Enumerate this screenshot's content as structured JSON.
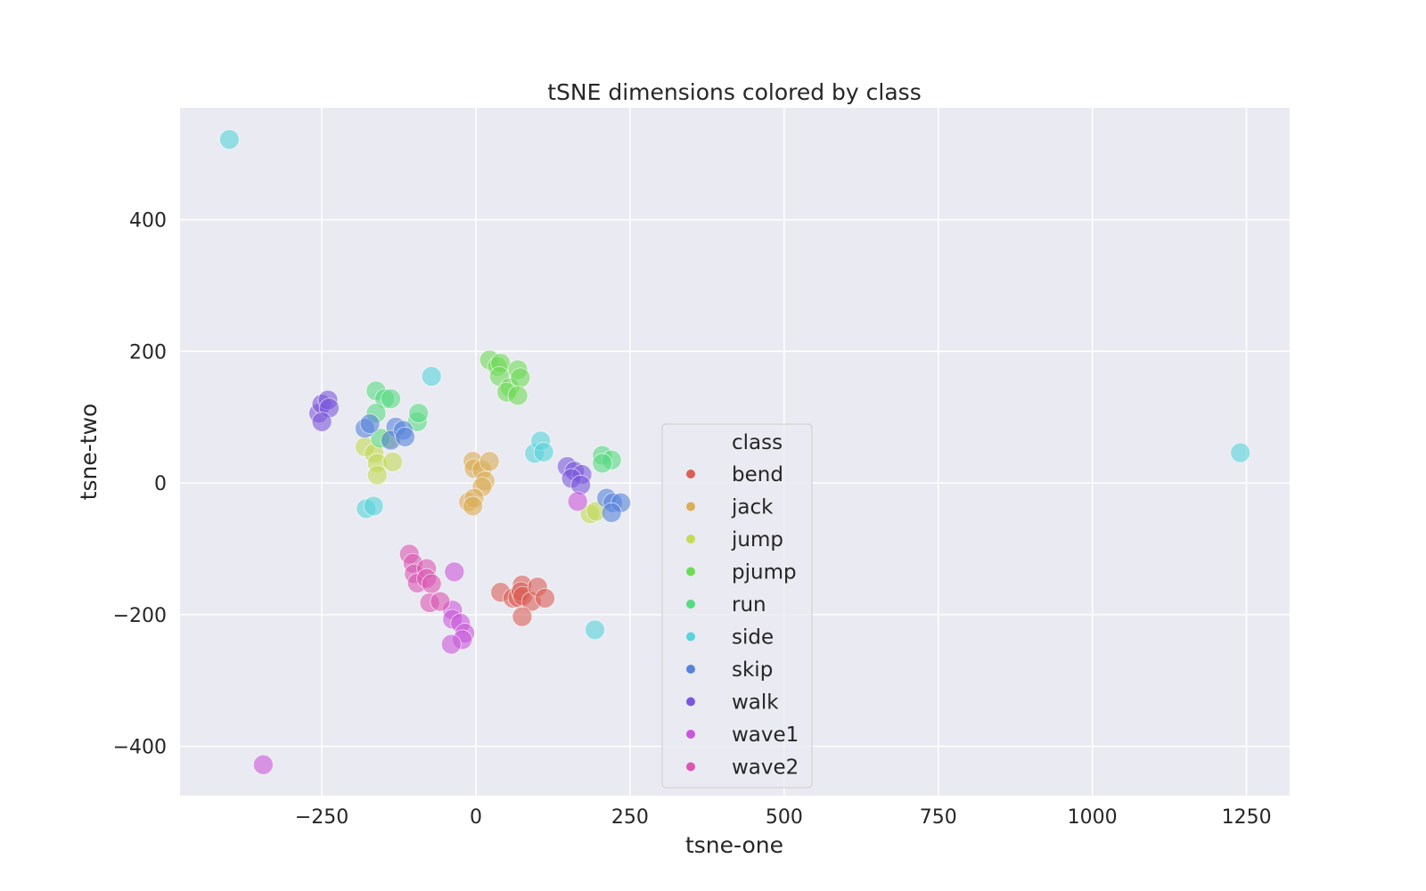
{
  "chart_data": {
    "type": "scatter",
    "title": "tSNE dimensions colored by class",
    "xlabel": "tsne-one",
    "ylabel": "tsne-two",
    "xlim": [
      -480,
      1320
    ],
    "ylim": [
      -475,
      570
    ],
    "xticks": [
      -250,
      0,
      250,
      500,
      750,
      1000,
      1250
    ],
    "xtick_labels": [
      "−250",
      "0",
      "250",
      "500",
      "750",
      "1000",
      "1250"
    ],
    "yticks": [
      -400,
      -200,
      0,
      200,
      400
    ],
    "ytick_labels": [
      "−400",
      "−200",
      "0",
      "200",
      "400"
    ],
    "grid": true,
    "legend": {
      "title": "class",
      "position": "lower-center"
    },
    "series": [
      {
        "name": "bend",
        "color": "#db5f57",
        "points": [
          [
            40,
            -166
          ],
          [
            60,
            -175
          ],
          [
            68,
            -174
          ],
          [
            75,
            -155
          ],
          [
            73,
            -165
          ],
          [
            76,
            -172
          ],
          [
            90,
            -180
          ],
          [
            100,
            -158
          ],
          [
            112,
            -175
          ],
          [
            75,
            -203
          ]
        ]
      },
      {
        "name": "jack",
        "color": "#dbad57",
        "points": [
          [
            -5,
            33
          ],
          [
            -3,
            22
          ],
          [
            10,
            20
          ],
          [
            22,
            33
          ],
          [
            15,
            3
          ],
          [
            10,
            -6
          ],
          [
            -12,
            -29
          ],
          [
            -3,
            -23
          ],
          [
            -5,
            -35
          ]
        ]
      },
      {
        "name": "jump",
        "color": "#c2db57",
        "points": [
          [
            -180,
            55
          ],
          [
            -165,
            45
          ],
          [
            -160,
            30
          ],
          [
            -160,
            12
          ],
          [
            -135,
            32
          ],
          [
            -140,
            67
          ],
          [
            185,
            -47
          ],
          [
            195,
            -43
          ]
        ]
      },
      {
        "name": "pjump",
        "color": "#6edb57",
        "points": [
          [
            22,
            187
          ],
          [
            35,
            177
          ],
          [
            40,
            182
          ],
          [
            38,
            162
          ],
          [
            55,
            145
          ],
          [
            50,
            138
          ],
          [
            68,
            172
          ],
          [
            72,
            160
          ],
          [
            68,
            133
          ]
        ]
      },
      {
        "name": "run",
        "color": "#57db80",
        "points": [
          [
            -162,
            140
          ],
          [
            -148,
            128
          ],
          [
            -138,
            128
          ],
          [
            -162,
            106
          ],
          [
            -155,
            68
          ],
          [
            -95,
            93
          ],
          [
            -93,
            106
          ],
          [
            205,
            42
          ],
          [
            220,
            35
          ],
          [
            205,
            30
          ]
        ]
      },
      {
        "name": "side",
        "color": "#57d3db",
        "points": [
          [
            -400,
            522
          ],
          [
            -72,
            162
          ],
          [
            -178,
            -39
          ],
          [
            -166,
            -35
          ],
          [
            95,
            45
          ],
          [
            105,
            64
          ],
          [
            110,
            47
          ],
          [
            193,
            -223
          ],
          [
            1240,
            46
          ]
        ]
      },
      {
        "name": "skip",
        "color": "#5783db",
        "points": [
          [
            -180,
            83
          ],
          [
            -172,
            90
          ],
          [
            -130,
            85
          ],
          [
            -138,
            65
          ],
          [
            -118,
            80
          ],
          [
            -115,
            70
          ],
          [
            212,
            -23
          ],
          [
            222,
            -30
          ],
          [
            235,
            -30
          ],
          [
            220,
            -45
          ]
        ]
      },
      {
        "name": "walk",
        "color": "#7957db",
        "points": [
          [
            -255,
            106
          ],
          [
            -250,
            120
          ],
          [
            -240,
            126
          ],
          [
            -238,
            114
          ],
          [
            -250,
            93
          ],
          [
            148,
            25
          ],
          [
            160,
            18
          ],
          [
            172,
            13
          ],
          [
            155,
            7
          ],
          [
            170,
            -3
          ]
        ]
      },
      {
        "name": "wave1",
        "color": "#c957db",
        "points": [
          [
            -35,
            -135
          ],
          [
            -38,
            -193
          ],
          [
            -38,
            -207
          ],
          [
            -25,
            -213
          ],
          [
            -18,
            -228
          ],
          [
            -22,
            -238
          ],
          [
            -40,
            -245
          ],
          [
            165,
            -28
          ],
          [
            -345,
            -428
          ]
        ]
      },
      {
        "name": "wave2",
        "color": "#db57b2",
        "points": [
          [
            -108,
            -108
          ],
          [
            -102,
            -122
          ],
          [
            -100,
            -138
          ],
          [
            -95,
            -152
          ],
          [
            -80,
            -130
          ],
          [
            -80,
            -145
          ],
          [
            -72,
            -153
          ],
          [
            -75,
            -182
          ],
          [
            -58,
            -180
          ]
        ]
      }
    ]
  }
}
